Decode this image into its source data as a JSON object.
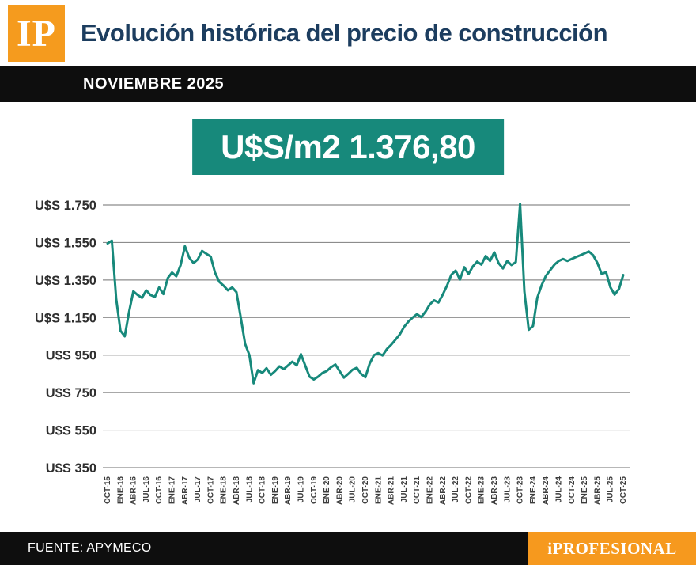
{
  "header": {
    "logo_text": "IP",
    "title": "Evolución histórica del precio de construcción"
  },
  "period_bar": {
    "label": "NOVIEMBRE 2025"
  },
  "price_box": {
    "value": "U$S/m2 1.376,80"
  },
  "chart_data": {
    "type": "line",
    "title": "",
    "xlabel": "",
    "ylabel": "",
    "unit": "U$S/m2",
    "grid": true,
    "legend": "none",
    "line_color": "#17897b",
    "ylim": [
      350,
      1800
    ],
    "y_ticks": [
      {
        "value": 1750,
        "label": "U$S 1.750"
      },
      {
        "value": 1550,
        "label": "U$S 1.550"
      },
      {
        "value": 1350,
        "label": "U$S 1.350"
      },
      {
        "value": 1150,
        "label": "U$S 1.150"
      },
      {
        "value": 950,
        "label": "U$S 950"
      },
      {
        "value": 750,
        "label": "U$S 750"
      },
      {
        "value": 550,
        "label": "U$S 550"
      },
      {
        "value": 350,
        "label": "U$S 350"
      }
    ],
    "label_every": 3,
    "x_labels": [
      "OCT-15",
      "ENE-16",
      "ABR-16",
      "JUL-16",
      "OCT-16",
      "ENE-17",
      "ABR-17",
      "JUL-17",
      "OCT-17",
      "ENE-18",
      "ABR-18",
      "JUL-18",
      "OCT-18",
      "ENE-19",
      "ABR-19",
      "JUL-19",
      "OCT-19",
      "ENE-20",
      "ABR-20",
      "JUL-20",
      "OCT-20",
      "ENE-21",
      "ABR-21",
      "JUL-21",
      "OCT-21",
      "ENE-22",
      "ABR-22",
      "JUL-22",
      "OCT-22",
      "ENE-23",
      "ABR-23",
      "JUL-23",
      "OCT-23",
      "ENE-24",
      "ABR-24",
      "JUL-24",
      "OCT-24",
      "ENE-25",
      "ABR-25",
      "JUL-25",
      "OCT-25"
    ],
    "series": [
      {
        "name": "U$S/m2",
        "values": [
          1545,
          1560,
          1250,
          1080,
          1050,
          1180,
          1290,
          1270,
          1255,
          1295,
          1270,
          1260,
          1310,
          1275,
          1360,
          1390,
          1370,
          1430,
          1530,
          1470,
          1440,
          1460,
          1505,
          1490,
          1475,
          1390,
          1340,
          1320,
          1295,
          1310,
          1285,
          1150,
          1010,
          950,
          800,
          870,
          855,
          880,
          845,
          865,
          890,
          875,
          895,
          915,
          895,
          955,
          895,
          835,
          820,
          835,
          855,
          865,
          885,
          900,
          865,
          830,
          850,
          872,
          882,
          850,
          832,
          905,
          950,
          960,
          948,
          982,
          1005,
          1032,
          1060,
          1100,
          1128,
          1150,
          1168,
          1152,
          1182,
          1220,
          1242,
          1230,
          1272,
          1320,
          1378,
          1400,
          1352,
          1418,
          1382,
          1422,
          1448,
          1432,
          1478,
          1452,
          1498,
          1440,
          1412,
          1452,
          1430,
          1445,
          1755,
          1290,
          1085,
          1105,
          1255,
          1322,
          1372,
          1402,
          1432,
          1452,
          1462,
          1452,
          1462,
          1472,
          1482,
          1492,
          1502,
          1482,
          1440,
          1382,
          1392,
          1312,
          1272,
          1302,
          1376.8
        ]
      }
    ],
    "latest_value": 1376.8
  },
  "footer": {
    "source": "FUENTE: APYMECO",
    "brand": "iPROFESIONAL"
  },
  "colors": {
    "brand_orange": "#f59b1e",
    "teal": "#17897b",
    "navy_title": "#1c3d5f",
    "bar_black": "#0e0e0e",
    "gridline_gray": "#8c8c8c"
  }
}
